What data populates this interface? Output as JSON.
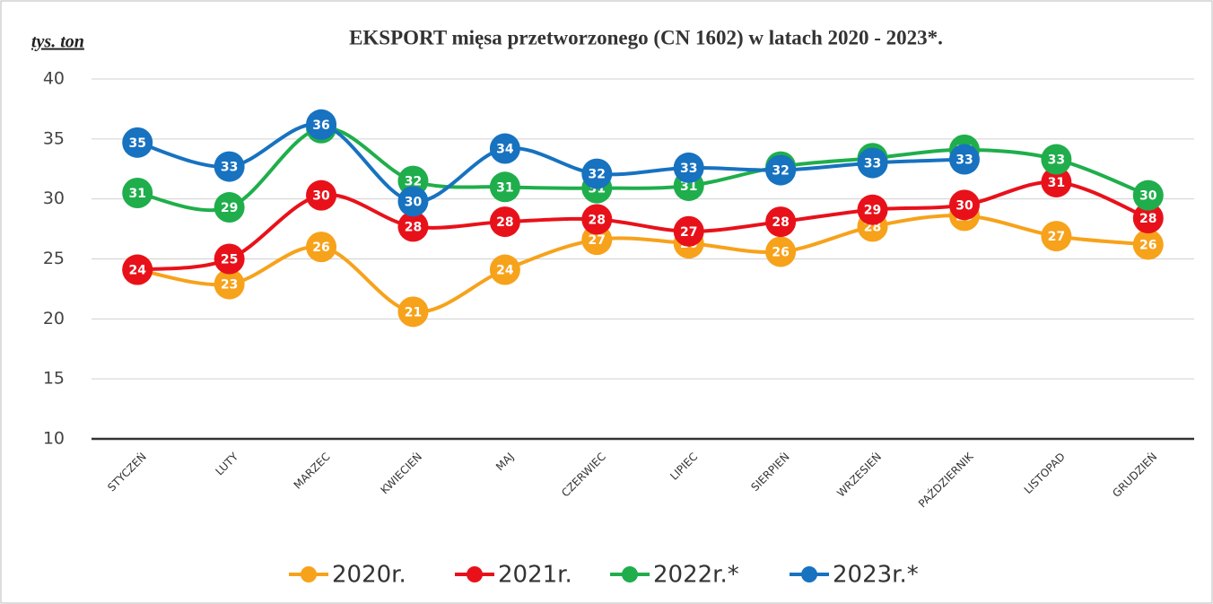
{
  "chart_data": {
    "type": "line",
    "title": "EKSPORT mięsa przetworzonego (CN 1602) w latach 2020 - 2023*.",
    "y_label": "tys. ton",
    "categories": [
      "STYCZEŃ",
      "LUTY",
      "MARZEC",
      "KWIECIEŃ",
      "MAJ",
      "CZERWIEC",
      "LIPIEC",
      "SIERPIEŃ",
      "WRZESIEŃ",
      "PAŹDZIERNIK",
      "LISTOPAD",
      "GRUDZIEŃ"
    ],
    "series": [
      {
        "name": "2020r.",
        "color": "#f7a21b",
        "values": [
          24.1,
          22.9,
          26.0,
          20.6,
          24.1,
          26.6,
          26.3,
          25.6,
          27.7,
          28.6,
          26.9,
          26.2
        ],
        "value_labels": [
          24,
          23,
          26,
          21,
          24,
          27,
          26,
          26,
          28,
          29,
          27,
          26
        ]
      },
      {
        "name": "2021r.",
        "color": "#e8111a",
        "values": [
          24.1,
          25.0,
          30.3,
          27.7,
          28.1,
          28.3,
          27.3,
          28.1,
          29.1,
          29.5,
          31.4,
          28.4
        ],
        "value_labels": [
          24,
          25,
          30,
          28,
          28,
          28,
          27,
          28,
          29,
          30,
          31,
          28
        ]
      },
      {
        "name": "2022r.*",
        "color": "#1fae4b",
        "values": [
          30.5,
          29.3,
          35.9,
          31.5,
          31.0,
          30.9,
          31.1,
          32.7,
          33.4,
          34.1,
          33.3,
          30.3
        ],
        "value_labels": [
          31,
          29,
          36,
          32,
          31,
          31,
          31,
          33,
          33,
          34,
          33,
          30
        ]
      },
      {
        "name": "2023r.*",
        "color": "#1772c0",
        "values": [
          34.7,
          32.7,
          36.2,
          29.8,
          34.2,
          32.1,
          32.6,
          32.4,
          33.0,
          33.3,
          null,
          null
        ],
        "value_labels": [
          35,
          33,
          36,
          30,
          34,
          32,
          33,
          32,
          33,
          33,
          null,
          null
        ]
      }
    ],
    "ylim": [
      10,
      40
    ],
    "yticks": [
      10,
      15,
      20,
      25,
      30,
      35,
      40
    ],
    "grid": true,
    "legend": "bottom"
  }
}
